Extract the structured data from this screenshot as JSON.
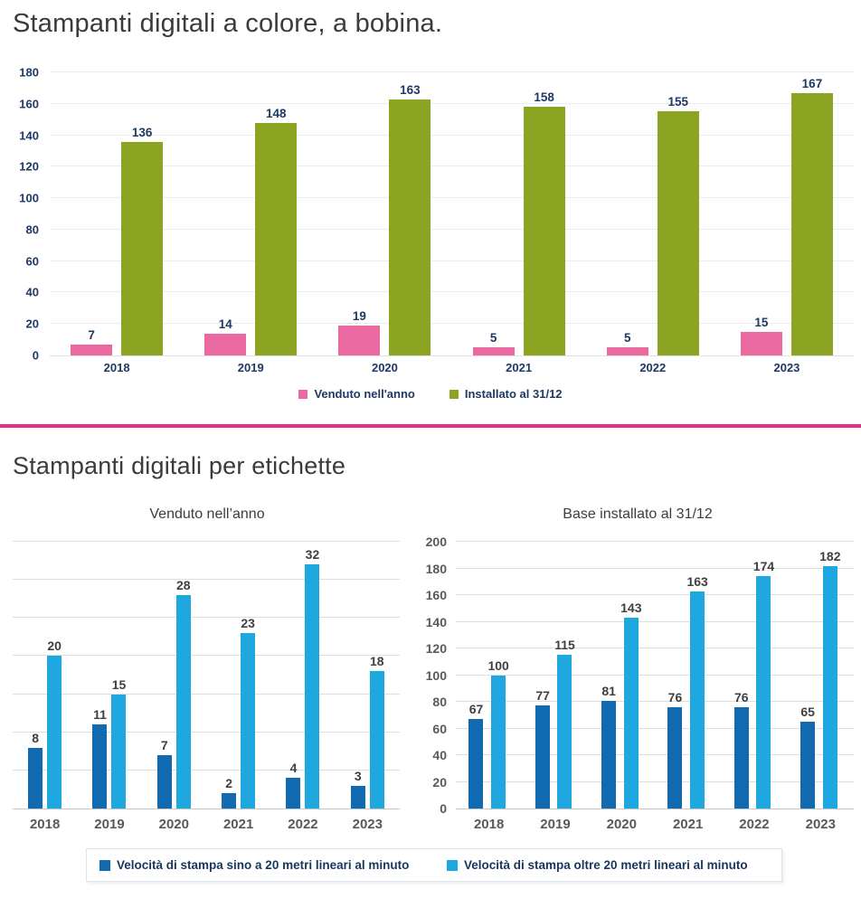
{
  "section1": {
    "title": "Stampanti digitali a colore, a bobina.",
    "legend": [
      {
        "label": "Venduto nell'anno",
        "color": "#EA69A1"
      },
      {
        "label": "Installato al 31/12",
        "color": "#8BA522"
      }
    ]
  },
  "section2": {
    "title": "Stampanti digitali per etichette",
    "legend": [
      {
        "label": "Velocità di stampa sino a 20 metri lineari al minuto",
        "color": "#1169B0"
      },
      {
        "label": "Velocità di stampa oltre 20 metri lineari al minuto",
        "color": "#1FA8E0"
      }
    ]
  },
  "colors": {
    "divider": "#E92A8C",
    "navy_text": "#1F3864",
    "gray_text": "#595959",
    "value_text": "#3F3F3F",
    "pink_bar": "#EA69A1",
    "olive_bar": "#8BA522",
    "dark_blue_bar": "#1169B0",
    "light_blue_bar": "#1FA8E0"
  },
  "chart_data": [
    {
      "id": "bobina",
      "type": "bar",
      "title": "Stampanti digitali a colore, a bobina.",
      "categories": [
        "2018",
        "2019",
        "2020",
        "2021",
        "2022",
        "2023"
      ],
      "series": [
        {
          "name": "Venduto nell'anno",
          "color": "#EA69A1",
          "values": [
            7,
            14,
            19,
            5,
            5,
            15
          ]
        },
        {
          "name": "Installato al 31/12",
          "color": "#8BA522",
          "values": [
            136,
            148,
            163,
            158,
            155,
            167
          ]
        }
      ],
      "ylim": [
        0,
        180
      ],
      "ytick": 20,
      "grid": true,
      "show_y_labels": true,
      "legend_position": "bottom"
    },
    {
      "id": "etichette-venduto",
      "type": "bar",
      "title": "Venduto nell’anno",
      "categories": [
        "2018",
        "2019",
        "2020",
        "2021",
        "2022",
        "2023"
      ],
      "series": [
        {
          "name": "Velocità di stampa sino a 20 metri lineari al minuto",
          "color": "#1169B0",
          "values": [
            8,
            11,
            7,
            2,
            4,
            3
          ]
        },
        {
          "name": "Velocità di stampa oltre 20 metri lineari al minuto",
          "color": "#1FA8E0",
          "values": [
            20,
            15,
            28,
            23,
            32,
            18
          ]
        }
      ],
      "ylim": [
        0,
        35
      ],
      "ytick": 5,
      "grid": true,
      "show_y_labels": false,
      "legend_position": "shared-bottom"
    },
    {
      "id": "etichette-installato",
      "type": "bar",
      "title": "Base installato al 31/12",
      "categories": [
        "2018",
        "2019",
        "2020",
        "2021",
        "2022",
        "2023"
      ],
      "series": [
        {
          "name": "Velocità di stampa sino a 20 metri lineari al minuto",
          "color": "#1169B0",
          "values": [
            67,
            77,
            81,
            76,
            76,
            65
          ]
        },
        {
          "name": "Velocità di stampa oltre 20 metri lineari al minuto",
          "color": "#1FA8E0",
          "values": [
            100,
            115,
            143,
            163,
            174,
            182
          ]
        }
      ],
      "ylim": [
        0,
        200
      ],
      "ytick": 20,
      "grid": true,
      "show_y_labels": true,
      "legend_position": "shared-bottom"
    }
  ]
}
